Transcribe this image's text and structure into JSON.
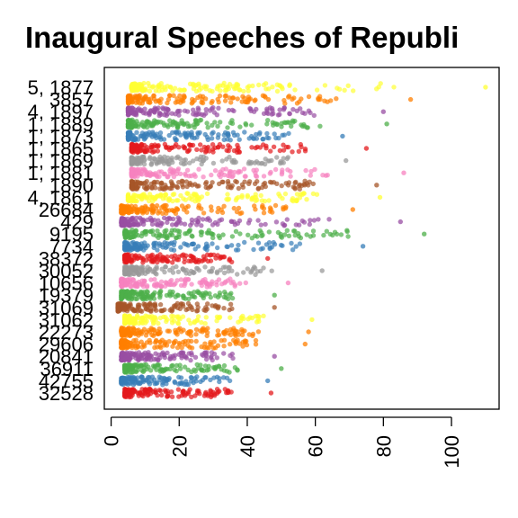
{
  "chart_data": {
    "type": "scatter",
    "title": "Inaugural Speeches of Republi",
    "xlim": [
      -2,
      114
    ],
    "x_ticks": [
      0,
      20,
      40,
      60,
      80,
      100
    ],
    "x_tick_labels": [
      "0",
      "20",
      "40",
      "60",
      "80",
      "100"
    ],
    "grid": false,
    "legend": "none",
    "rows": [
      {
        "label": "5, 1877",
        "color": "#FFFF33",
        "min": 6,
        "max": 110
      },
      {
        "label": "3857",
        "color": "#FF7F00",
        "min": 5,
        "max": 88
      },
      {
        "label": "4, 1897",
        "color": "#984EA3",
        "min": 5,
        "max": 80
      },
      {
        "label": "1, 1889",
        "color": "#4DAF4A",
        "min": 5,
        "max": 81
      },
      {
        "label": "1, 1873",
        "color": "#377EB8",
        "min": 5,
        "max": 68
      },
      {
        "label": "1, 1865",
        "color": "#E41A1C",
        "min": 6,
        "max": 75
      },
      {
        "label": "1, 1869",
        "color": "#999999",
        "min": 6,
        "max": 69
      },
      {
        "label": "1, 1881",
        "color": "#F781BF",
        "min": 6,
        "max": 86
      },
      {
        "label": "1890",
        "color": "#A65628",
        "min": 6,
        "max": 78
      },
      {
        "label": "4, 1861",
        "color": "#FFFF33",
        "min": 5,
        "max": 79
      },
      {
        "label": "26684",
        "color": "#FF7F00",
        "min": 3,
        "max": 71
      },
      {
        "label": "429",
        "color": "#984EA3",
        "min": 3,
        "max": 85
      },
      {
        "label": "9195",
        "color": "#4DAF4A",
        "min": 4,
        "max": 92
      },
      {
        "label": "7734",
        "color": "#377EB8",
        "min": 4,
        "max": 74
      },
      {
        "label": "38372",
        "color": "#E41A1C",
        "min": 4,
        "max": 46
      },
      {
        "label": "30052",
        "color": "#999999",
        "min": 4,
        "max": 62
      },
      {
        "label": "10656",
        "color": "#F781BF",
        "min": 3,
        "max": 52
      },
      {
        "label": "19379",
        "color": "#4DAF4A",
        "min": 3,
        "max": 48
      },
      {
        "label": "31069",
        "color": "#A65628",
        "min": 2,
        "max": 48
      },
      {
        "label": "31062",
        "color": "#FFFF33",
        "min": 4,
        "max": 59
      },
      {
        "label": "22273",
        "color": "#FF7F00",
        "min": 3,
        "max": 58
      },
      {
        "label": "29606",
        "color": "#FF7F00",
        "min": 3,
        "max": 57
      },
      {
        "label": "20841",
        "color": "#984EA3",
        "min": 3,
        "max": 48
      },
      {
        "label": "36911",
        "color": "#4DAF4A",
        "min": 4,
        "max": 50
      },
      {
        "label": "42755",
        "color": "#377EB8",
        "min": 3,
        "max": 46
      },
      {
        "label": "32528",
        "color": "#E41A1C",
        "min": 4,
        "max": 47
      }
    ]
  }
}
